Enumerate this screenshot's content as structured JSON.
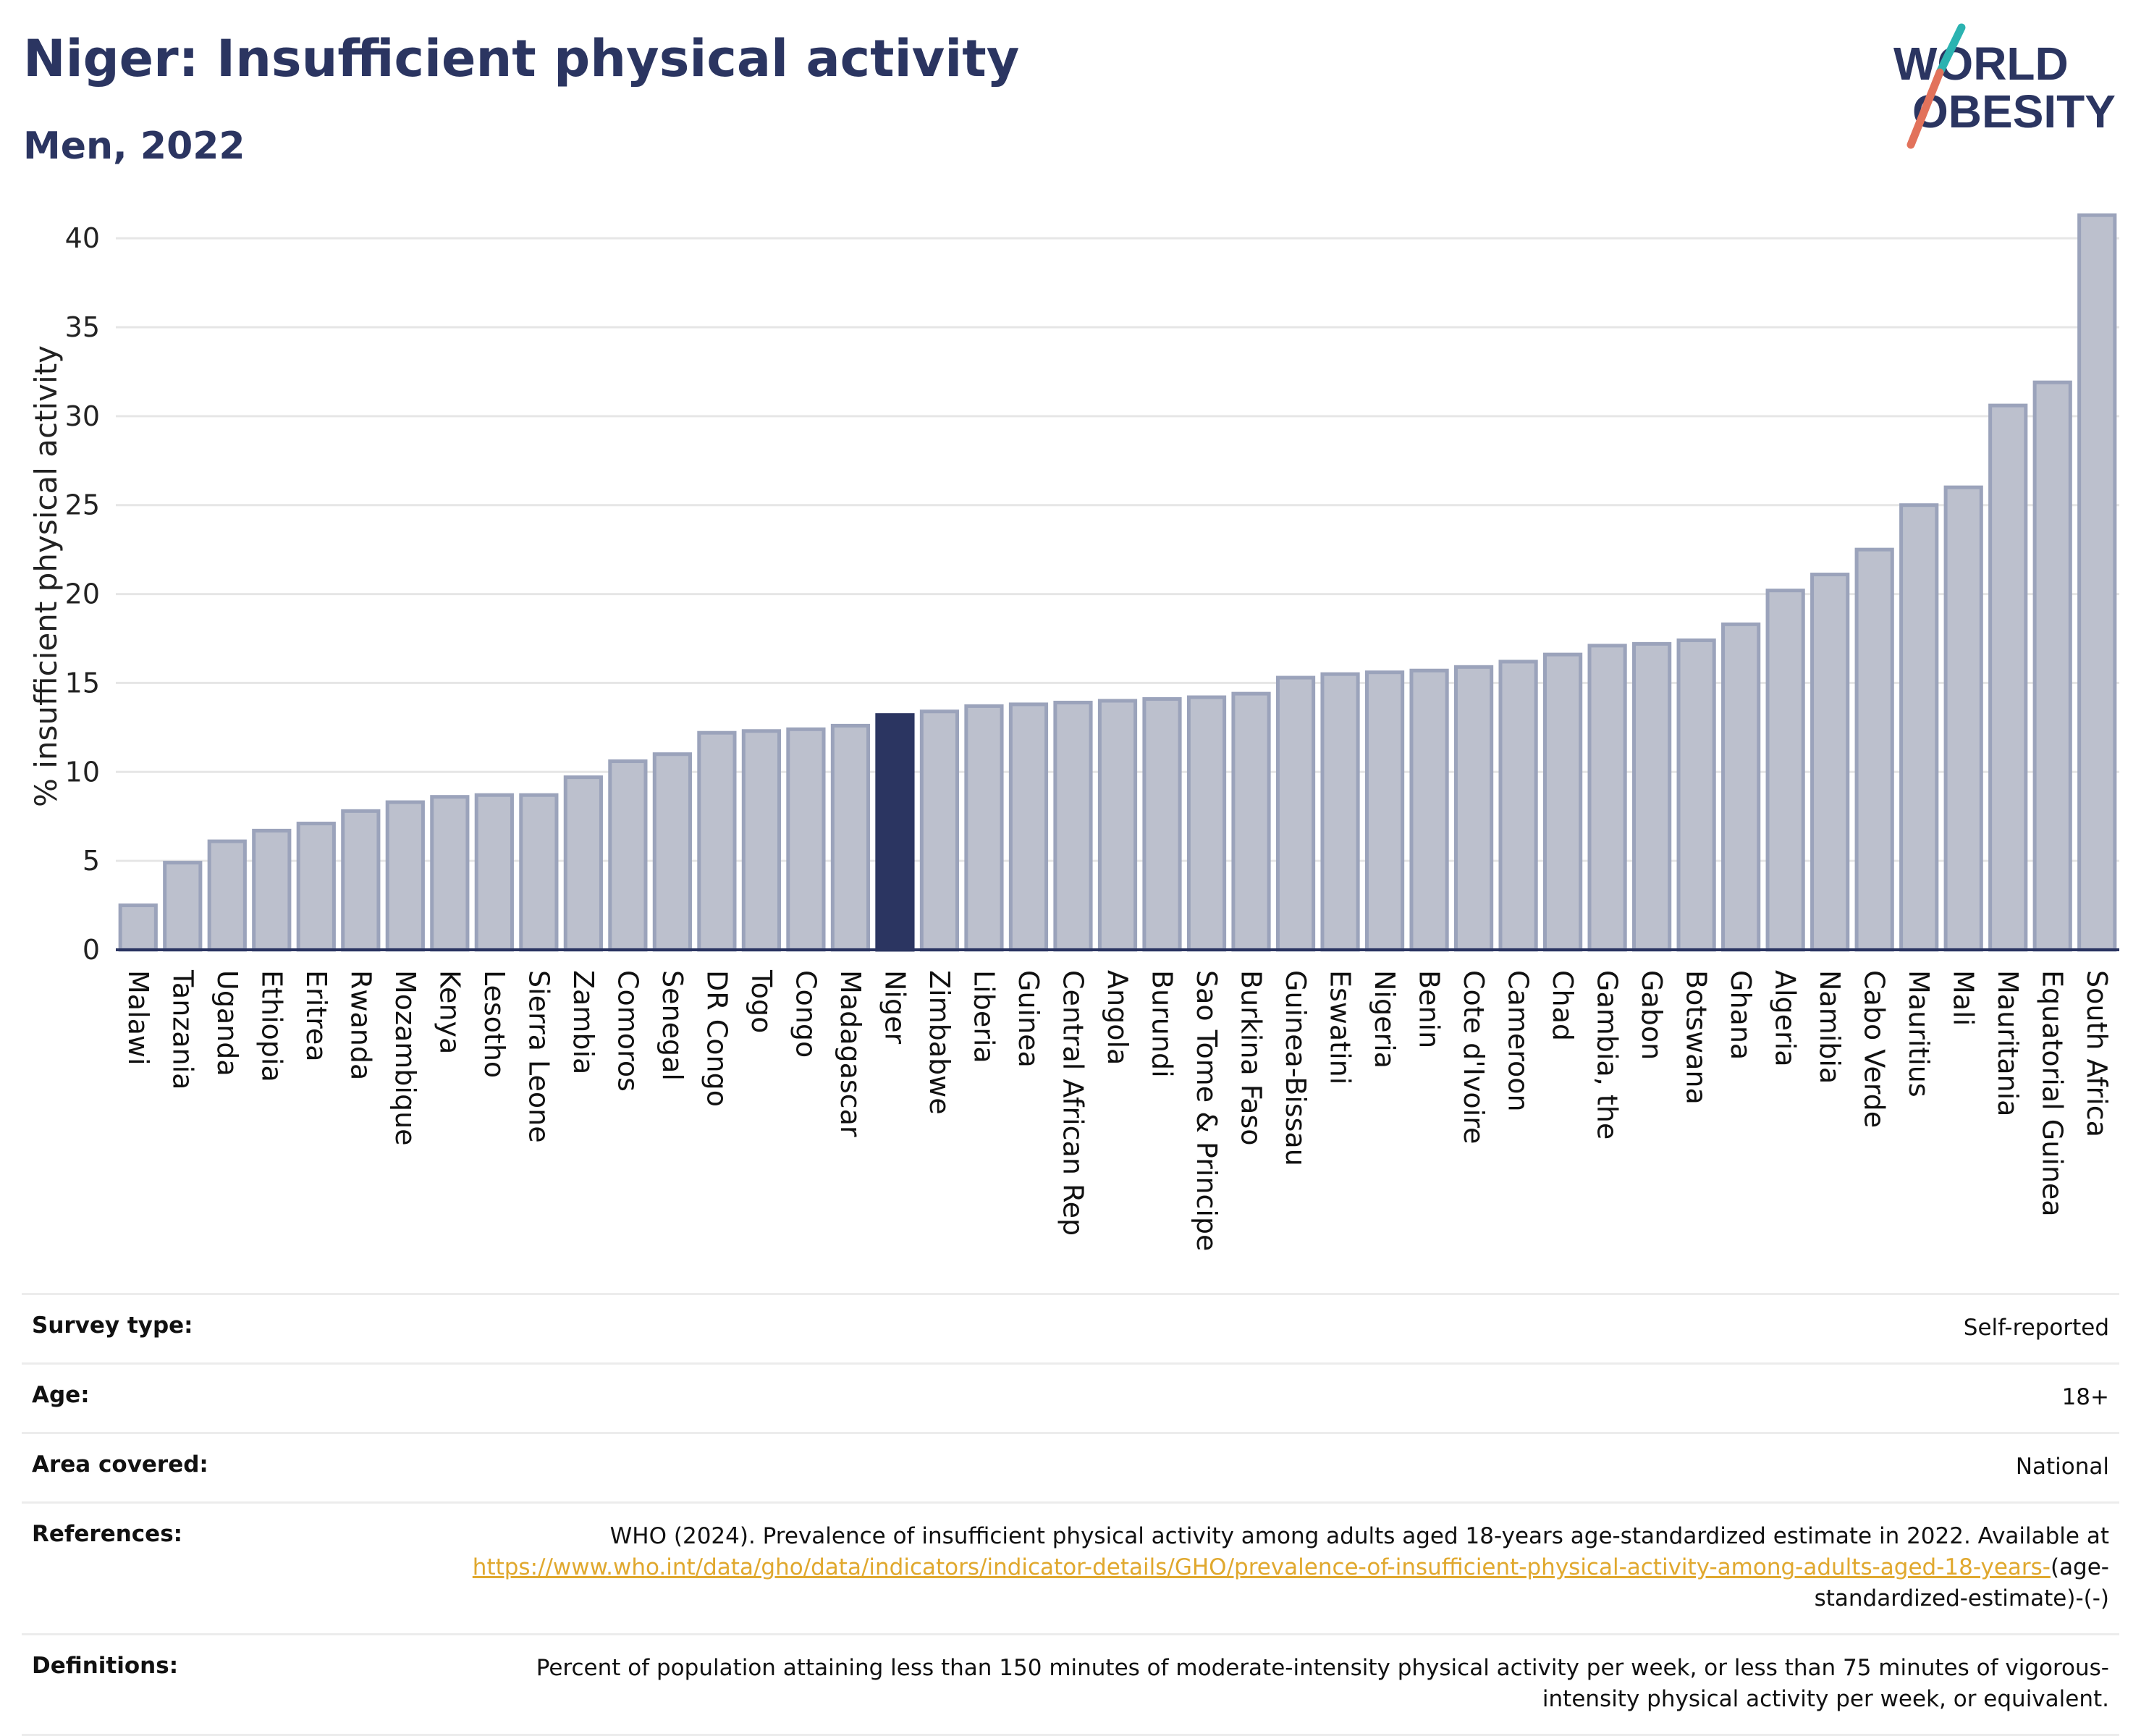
{
  "header": {
    "title": "Niger: Insufficient physical activity",
    "subtitle": "Men, 2022"
  },
  "logo": {
    "line1": "WORLD",
    "line2": "OBESITY",
    "text_color": "#2b3561",
    "slash_top_color": "#2bb3b1",
    "slash_bottom_color": "#e2725b"
  },
  "chart_data": {
    "type": "bar",
    "ylabel": "% insufficient physical activity",
    "ylim": [
      0,
      42
    ],
    "yticks": [
      0,
      5,
      10,
      15,
      20,
      25,
      30,
      35,
      40
    ],
    "grid": true,
    "highlight": "Niger",
    "bar_color": "#bcc0cd",
    "bar_border": "#9ba3bb",
    "highlight_color": "#2b3561",
    "categories": [
      "Malawi",
      "Tanzania",
      "Uganda",
      "Ethiopia",
      "Eritrea",
      "Rwanda",
      "Mozambique",
      "Kenya",
      "Lesotho",
      "Sierra Leone",
      "Zambia",
      "Comoros",
      "Senegal",
      "DR Congo",
      "Togo",
      "Congo",
      "Madagascar",
      "Niger",
      "Zimbabwe",
      "Liberia",
      "Guinea",
      "Central African Rep",
      "Angola",
      "Burundi",
      "Sao Tome & Principe",
      "Burkina Faso",
      "Guinea-Bissau",
      "Eswatini",
      "Nigeria",
      "Benin",
      "Cote d'Ivoire",
      "Cameroon",
      "Chad",
      "Gambia, the",
      "Gabon",
      "Botswana",
      "Ghana",
      "Algeria",
      "Namibia",
      "Cabo Verde",
      "Mauritius",
      "Mali",
      "Mauritania",
      "Equatorial Guinea",
      "South Africa"
    ],
    "values": [
      2.5,
      4.9,
      6.1,
      6.7,
      7.1,
      7.8,
      8.3,
      8.6,
      8.7,
      8.7,
      9.7,
      10.6,
      11.0,
      12.2,
      12.3,
      12.4,
      12.6,
      13.2,
      13.4,
      13.7,
      13.8,
      13.9,
      14.0,
      14.1,
      14.2,
      14.4,
      15.3,
      15.5,
      15.6,
      15.7,
      15.9,
      16.2,
      16.6,
      17.1,
      17.2,
      17.4,
      18.3,
      20.2,
      21.1,
      22.5,
      25.0,
      26.0,
      30.6,
      31.9,
      41.3
    ]
  },
  "meta": [
    {
      "label": "Survey type:",
      "value": "Self-reported"
    },
    {
      "label": "Age:",
      "value": "18+"
    },
    {
      "label": "Area covered:",
      "value": "National"
    },
    {
      "label": "References:",
      "value_before": "WHO (2024). Prevalence of insufficient physical activity among adults aged 18-years age-standardized estimate in 2022. Available at",
      "link_text": "https://www.who.int/data/gho/data/indicators/indicator-details/GHO/prevalence-of-insufficient-physical-activity-among-adults-aged-18-years-",
      "value_after": "(age-standardized-estimate)-(-)"
    },
    {
      "label": "Definitions:",
      "value": "Percent of population attaining less than 150 minutes of moderate-intensity physical activity per week, or less than 75 minutes of vigorous-intensity physical activity per week, or equivalent."
    }
  ]
}
